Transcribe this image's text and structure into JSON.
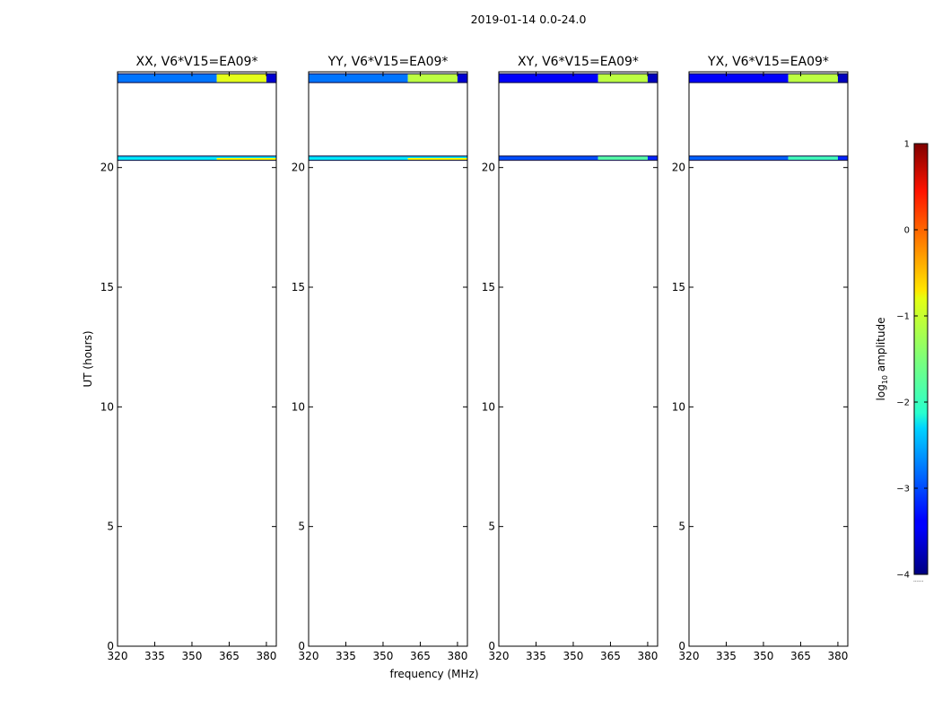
{
  "suptitle": "2019-01-14 0.0-24.0",
  "chart_data": {
    "type": "heatmap",
    "x_label": "frequency (MHz)",
    "y_label": "UT (hours)",
    "xlim": [
      320,
      384
    ],
    "ylim": [
      0,
      24
    ],
    "x_ticks": [
      320,
      335,
      350,
      365,
      380
    ],
    "y_ticks": [
      0,
      5,
      10,
      15,
      20
    ],
    "colormap": "jet",
    "colorbar": {
      "label_prefix": "log",
      "label_sub": "10",
      "label_suffix": " amplitude",
      "range": [
        -4,
        1
      ],
      "ticks": [
        1,
        0,
        -1,
        -2,
        -3,
        -4
      ],
      "tick_labels": [
        "1",
        "0",
        "−1",
        "−2",
        "−3",
        "−4"
      ],
      "footnote": "......"
    },
    "panels": [
      {
        "title": "XX, V6*V15=EA09*",
        "bands": [
          {
            "t0": 23.55,
            "t1": 23.92,
            "f0": 320,
            "f1": 360,
            "value": -2.8
          },
          {
            "t0": 23.55,
            "t1": 23.92,
            "f0": 360,
            "f1": 380,
            "value": -1.0
          },
          {
            "t0": 23.55,
            "t1": 23.92,
            "f0": 380,
            "f1": 384,
            "value": -3.6
          },
          {
            "t0": 20.4,
            "t1": 20.48,
            "f0": 320,
            "f1": 384,
            "value": -2.3
          },
          {
            "t0": 20.3,
            "t1": 20.4,
            "f0": 320,
            "f1": 360,
            "value": -2.2
          },
          {
            "t0": 20.3,
            "t1": 20.4,
            "f0": 360,
            "f1": 384,
            "value": -0.9
          }
        ]
      },
      {
        "title": "YY, V6*V15=EA09*",
        "bands": [
          {
            "t0": 23.55,
            "t1": 23.92,
            "f0": 320,
            "f1": 360,
            "value": -2.8
          },
          {
            "t0": 23.55,
            "t1": 23.92,
            "f0": 360,
            "f1": 380,
            "value": -1.2
          },
          {
            "t0": 23.55,
            "t1": 23.92,
            "f0": 380,
            "f1": 384,
            "value": -3.6
          },
          {
            "t0": 20.4,
            "t1": 20.48,
            "f0": 320,
            "f1": 384,
            "value": -2.3
          },
          {
            "t0": 20.3,
            "t1": 20.4,
            "f0": 320,
            "f1": 360,
            "value": -2.2
          },
          {
            "t0": 20.3,
            "t1": 20.4,
            "f0": 360,
            "f1": 384,
            "value": -0.9
          }
        ]
      },
      {
        "title": "XY, V6*V15=EA09*",
        "bands": [
          {
            "t0": 23.55,
            "t1": 23.92,
            "f0": 320,
            "f1": 360,
            "value": -3.4
          },
          {
            "t0": 23.55,
            "t1": 23.92,
            "f0": 360,
            "f1": 380,
            "value": -1.2
          },
          {
            "t0": 23.55,
            "t1": 23.92,
            "f0": 380,
            "f1": 384,
            "value": -3.7
          },
          {
            "t0": 20.32,
            "t1": 20.48,
            "f0": 320,
            "f1": 360,
            "value": -3.0
          },
          {
            "t0": 20.32,
            "t1": 20.48,
            "f0": 360,
            "f1": 380,
            "value": -1.7
          },
          {
            "t0": 20.32,
            "t1": 20.48,
            "f0": 380,
            "f1": 384,
            "value": -3.2
          }
        ]
      },
      {
        "title": "YX, V6*V15=EA09*",
        "bands": [
          {
            "t0": 23.55,
            "t1": 23.92,
            "f0": 320,
            "f1": 360,
            "value": -3.4
          },
          {
            "t0": 23.55,
            "t1": 23.92,
            "f0": 360,
            "f1": 380,
            "value": -1.2
          },
          {
            "t0": 23.55,
            "t1": 23.92,
            "f0": 380,
            "f1": 384,
            "value": -3.7
          },
          {
            "t0": 20.32,
            "t1": 20.48,
            "f0": 320,
            "f1": 360,
            "value": -2.9
          },
          {
            "t0": 20.32,
            "t1": 20.48,
            "f0": 360,
            "f1": 380,
            "value": -1.8
          },
          {
            "t0": 20.32,
            "t1": 20.48,
            "f0": 380,
            "f1": 384,
            "value": -3.2
          }
        ]
      }
    ]
  }
}
